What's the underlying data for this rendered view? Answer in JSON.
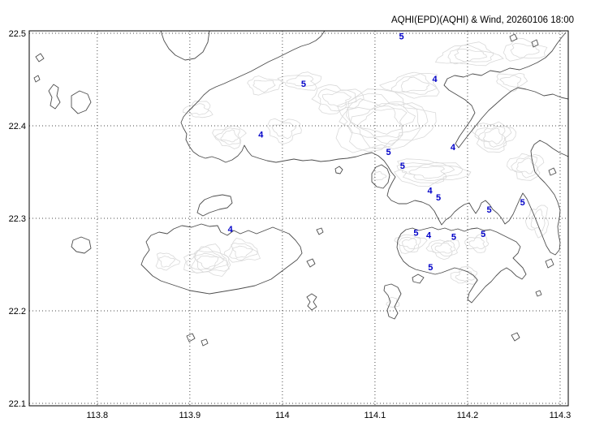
{
  "title": "AQHI(EPD)(AQHI) & Wind, 20260106 18:00",
  "colors": {
    "background": "#ffffff",
    "frame": "#000000",
    "coastline": "#4d4d4d",
    "terrain_contour": "#d9d9d9",
    "gridline": "#4a4a4a",
    "station_value": "#0000c8",
    "axis_text": "#000000"
  },
  "axes": {
    "x": {
      "min": 113.7265,
      "max": 114.3088,
      "ticks": [
        {
          "value": 113.8,
          "label": "113.8"
        },
        {
          "value": 113.9,
          "label": "113.9"
        },
        {
          "value": 114.0,
          "label": "114"
        },
        {
          "value": 114.1,
          "label": "114.1"
        },
        {
          "value": 114.2,
          "label": "114.2"
        },
        {
          "value": 114.3,
          "label": "114.3"
        }
      ]
    },
    "y": {
      "min": 22.0974,
      "max": 22.5026,
      "ticks": [
        {
          "value": 22.1,
          "label": "22.1"
        },
        {
          "value": 22.2,
          "label": "22.2"
        },
        {
          "value": 22.3,
          "label": "22.3"
        },
        {
          "value": 22.4,
          "label": "22.4"
        },
        {
          "value": 22.5,
          "label": "22.5"
        }
      ]
    }
  },
  "stations": [
    {
      "value": "5",
      "lon": 114.0228,
      "lat": 22.4454
    },
    {
      "value": "5",
      "lon": 114.1287,
      "lat": 22.4968
    },
    {
      "value": "4",
      "lon": 113.9767,
      "lat": 22.3908
    },
    {
      "value": "4",
      "lon": 114.1645,
      "lat": 22.4509
    },
    {
      "value": "4",
      "lon": 114.1842,
      "lat": 22.3771
    },
    {
      "value": "5",
      "lon": 114.1146,
      "lat": 22.3717
    },
    {
      "value": "5",
      "lon": 114.1297,
      "lat": 22.357
    },
    {
      "value": "4",
      "lon": 114.1594,
      "lat": 22.3302
    },
    {
      "value": "5",
      "lon": 114.1686,
      "lat": 22.3226
    },
    {
      "value": "5",
      "lon": 114.2233,
      "lat": 22.3096
    },
    {
      "value": "5",
      "lon": 114.2594,
      "lat": 22.3177
    },
    {
      "value": "4",
      "lon": 113.9437,
      "lat": 22.2888
    },
    {
      "value": "5",
      "lon": 114.1443,
      "lat": 22.2845
    },
    {
      "value": "4",
      "lon": 114.158,
      "lat": 22.2819
    },
    {
      "value": "5",
      "lon": 114.1851,
      "lat": 22.2801
    },
    {
      "value": "5",
      "lon": 114.2169,
      "lat": 22.2832
    },
    {
      "value": "5",
      "lon": 114.16,
      "lat": 22.2475
    }
  ]
}
